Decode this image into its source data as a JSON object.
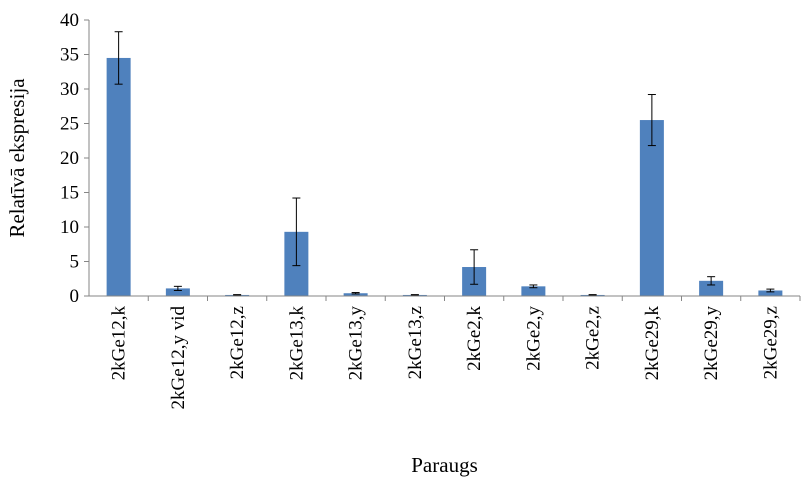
{
  "chart_data": {
    "type": "bar",
    "title": "",
    "xlabel": "Paraugs",
    "ylabel": "Relatīvā ekspresija",
    "ylim": [
      0,
      40
    ],
    "yticks": [
      0,
      5,
      10,
      15,
      20,
      25,
      30,
      35,
      40
    ],
    "grid": false,
    "legend": "none",
    "bar_color": "#4F81BD",
    "categories": [
      "2kGe12,k",
      "2kGe12,y vid",
      "2kGe12,z",
      "2kGe13,k",
      "2kGe13,y",
      "2kGe13,z",
      "2kGe2,k",
      "2kGe2,y",
      "2kGe2,z",
      "2kGe29,k",
      "2kGe29,y",
      "2kGe29,z"
    ],
    "values": [
      34.5,
      1.1,
      0.15,
      9.3,
      0.4,
      0.15,
      4.2,
      1.4,
      0.15,
      25.5,
      2.2,
      0.8
    ],
    "error": [
      3.8,
      0.3,
      0.05,
      4.9,
      0.1,
      0.05,
      2.5,
      0.2,
      0.05,
      3.7,
      0.6,
      0.2
    ]
  }
}
